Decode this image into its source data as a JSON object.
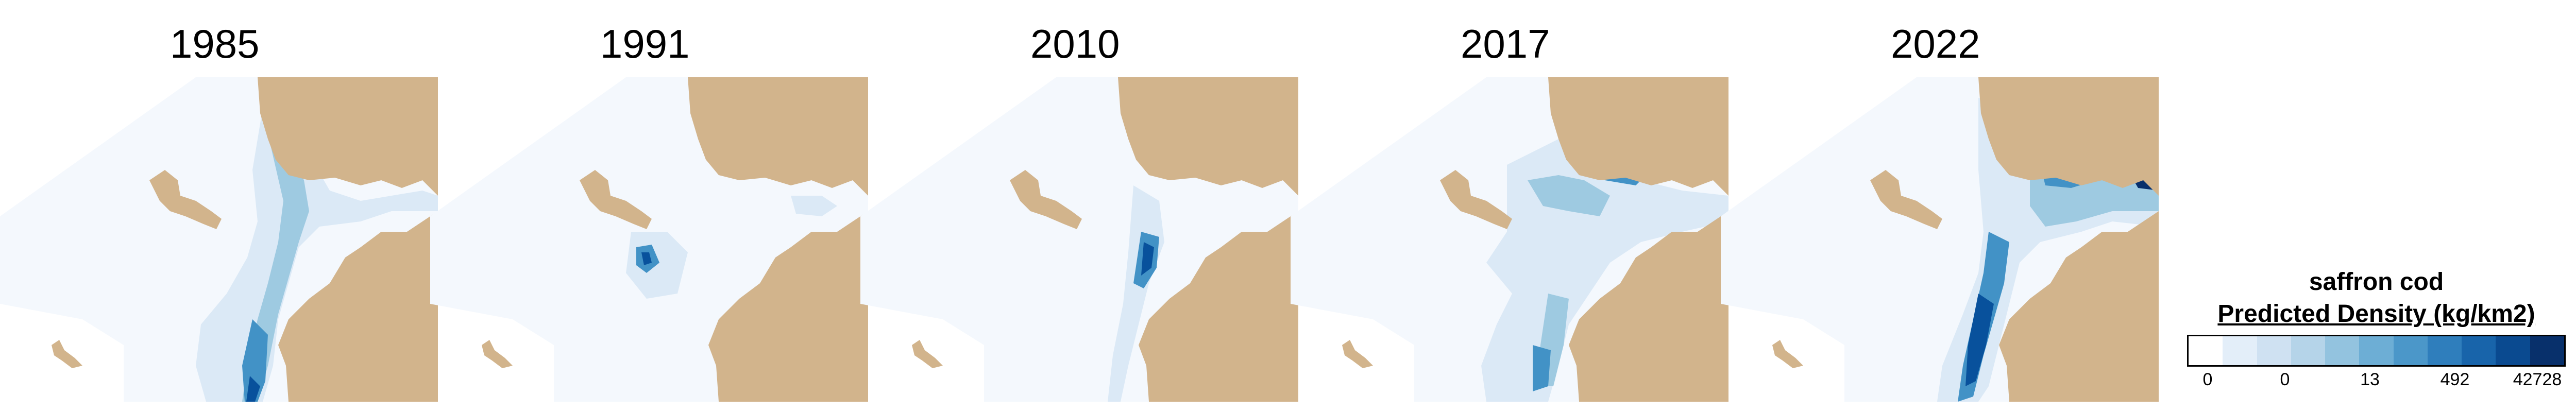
{
  "map": {
    "panels": [
      {
        "year": "1985"
      },
      {
        "year": "1991"
      },
      {
        "year": "2010"
      },
      {
        "year": "2017"
      },
      {
        "year": "2022"
      }
    ],
    "colors": {
      "land": "#d2b48c",
      "water_base": "#f4f8fd",
      "low": "#dbe9f6",
      "mid": "#9ecae1",
      "high": "#4292c6",
      "peak": "#08519c",
      "max": "#08306b"
    }
  },
  "legend": {
    "species": "saffron cod",
    "title": "Predicted Density (kg/km2)",
    "colors": [
      "#ffffff",
      "#e3eef9",
      "#cfe1f2",
      "#b5d4e9",
      "#93c3df",
      "#6daed5",
      "#4b97c9",
      "#2f7ebc",
      "#1864aa",
      "#0a4a90",
      "#08306b"
    ],
    "ticks": [
      "0",
      "0",
      "13",
      "492",
      "42728"
    ]
  }
}
